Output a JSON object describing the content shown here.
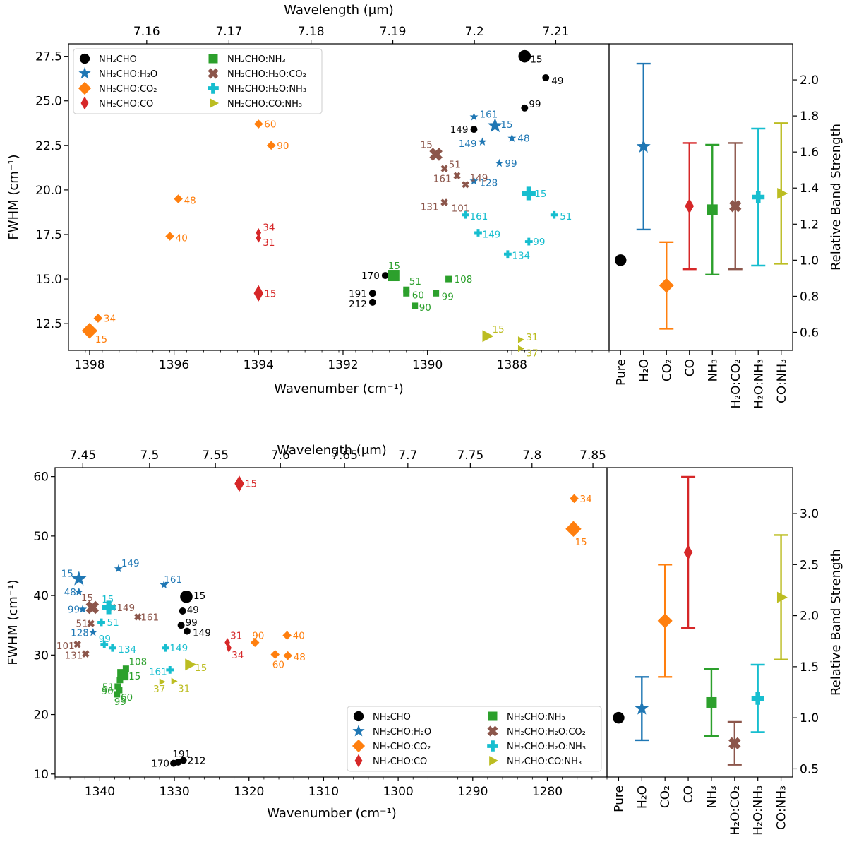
{
  "colors": {
    "pure": "#000000",
    "h2o": "#1f77b4",
    "co2": "#ff7f0e",
    "co": "#d62728",
    "nh3": "#2ca02c",
    "h2o_co2": "#8c564b",
    "h2o_nh3": "#17becf",
    "co_nh3": "#bcbd22"
  },
  "legend_entries": [
    {
      "key": "pure",
      "marker": "circle",
      "text": "NH₂CHO"
    },
    {
      "key": "h2o",
      "marker": "star",
      "text": "NH₂CHO:H₂O"
    },
    {
      "key": "co2",
      "marker": "diamond",
      "text": "NH₂CHO:CO₂"
    },
    {
      "key": "co",
      "marker": "thin_diamond",
      "text": "NH₂CHO:CO"
    },
    {
      "key": "nh3",
      "marker": "square",
      "text": "NH₂CHO:NH₃"
    },
    {
      "key": "h2o_co2",
      "marker": "x",
      "text": "NH₂CHO:H₂O:CO₂"
    },
    {
      "key": "h2o_nh3",
      "marker": "plus",
      "text": "NH₂CHO:H₂O:NH₃"
    },
    {
      "key": "co_nh3",
      "marker": "triangle",
      "text": "NH₂CHO:CO:NH₃"
    }
  ],
  "chart_data": [
    {
      "type": "scatter",
      "name": "top-scatter",
      "xlabel": "Wavenumber (cm⁻¹)",
      "ylabel": "FWHM (cm⁻¹)",
      "x2label": "Wavelength (μm)",
      "xlim": [
        1398.5,
        1385.7
      ],
      "ylim": [
        11.0,
        28.2
      ],
      "x_ticks": [
        1398,
        1396,
        1394,
        1392,
        1390,
        1388
      ],
      "y_ticks": [
        12.5,
        15.0,
        17.5,
        20.0,
        22.5,
        25.0,
        27.5
      ],
      "y_tick_labels": [
        "12.5",
        "15.0",
        "17.5",
        "20.0",
        "22.5",
        "25.0",
        "27.5"
      ],
      "x2_ticks": [
        7.16,
        7.17,
        7.18,
        7.19,
        7.2,
        7.21
      ],
      "x2_tick_labels": [
        "7.16",
        "7.17",
        "7.18",
        "7.19",
        "7.2",
        "7.21"
      ],
      "legend_position": "upper-left",
      "series": [
        {
          "key": "pure",
          "points": [
            {
              "x": 1387.7,
              "y": 27.5,
              "label": "15",
              "big": true
            },
            {
              "x": 1387.2,
              "y": 26.3,
              "label": "49"
            },
            {
              "x": 1387.7,
              "y": 24.6,
              "label": "99"
            },
            {
              "x": 1388.9,
              "y": 23.4,
              "label": "149"
            },
            {
              "x": 1391.0,
              "y": 15.2,
              "label": "170"
            },
            {
              "x": 1391.3,
              "y": 14.2,
              "label": "191"
            },
            {
              "x": 1391.3,
              "y": 13.7,
              "label": "212"
            }
          ]
        },
        {
          "key": "h2o",
          "points": [
            {
              "x": 1388.4,
              "y": 23.6,
              "label": "15",
              "big": true
            },
            {
              "x": 1388.9,
              "y": 24.1,
              "label": "161"
            },
            {
              "x": 1388.0,
              "y": 22.9,
              "label": "48"
            },
            {
              "x": 1388.7,
              "y": 22.7,
              "label": "149"
            },
            {
              "x": 1388.3,
              "y": 21.5,
              "label": "99"
            },
            {
              "x": 1388.9,
              "y": 20.5,
              "label": "128"
            }
          ]
        },
        {
          "key": "co2",
          "points": [
            {
              "x": 1398.0,
              "y": 12.1,
              "label": "15",
              "big": true
            },
            {
              "x": 1397.8,
              "y": 12.8,
              "label": "34"
            },
            {
              "x": 1396.1,
              "y": 17.4,
              "label": "40"
            },
            {
              "x": 1395.9,
              "y": 19.5,
              "label": "48"
            },
            {
              "x": 1394.0,
              "y": 23.7,
              "label": "60"
            },
            {
              "x": 1393.7,
              "y": 22.5,
              "label": "90"
            }
          ]
        },
        {
          "key": "co",
          "points": [
            {
              "x": 1394.0,
              "y": 14.2,
              "label": "15",
              "big": true
            },
            {
              "x": 1394.0,
              "y": 17.6,
              "label": "34"
            },
            {
              "x": 1394.0,
              "y": 17.3,
              "label": "31"
            }
          ]
        },
        {
          "key": "nh3",
          "points": [
            {
              "x": 1390.8,
              "y": 15.2,
              "label": "15",
              "big": true
            },
            {
              "x": 1390.5,
              "y": 14.4,
              "label": "51"
            },
            {
              "x": 1390.5,
              "y": 14.2,
              "label": "60"
            },
            {
              "x": 1389.8,
              "y": 14.2,
              "label": "99"
            },
            {
              "x": 1390.3,
              "y": 13.5,
              "label": "90"
            },
            {
              "x": 1389.5,
              "y": 15.0,
              "label": "108"
            }
          ]
        },
        {
          "key": "h2o_co2",
          "points": [
            {
              "x": 1389.8,
              "y": 22.0,
              "label": "15",
              "big": true
            },
            {
              "x": 1389.6,
              "y": 21.2,
              "label": "51"
            },
            {
              "x": 1389.3,
              "y": 20.8,
              "label": "161"
            },
            {
              "x": 1389.1,
              "y": 20.3,
              "label": "149"
            },
            {
              "x": 1389.6,
              "y": 19.3,
              "label": "101"
            },
            {
              "x": 1389.6,
              "y": 19.3,
              "label": "131"
            }
          ]
        },
        {
          "key": "h2o_nh3",
          "points": [
            {
              "x": 1387.6,
              "y": 19.8,
              "label": "15",
              "big": true
            },
            {
              "x": 1387.0,
              "y": 18.6,
              "label": "51"
            },
            {
              "x": 1389.1,
              "y": 18.6,
              "label": "161"
            },
            {
              "x": 1388.8,
              "y": 17.6,
              "label": "149"
            },
            {
              "x": 1387.6,
              "y": 17.1,
              "label": "99"
            },
            {
              "x": 1388.1,
              "y": 16.4,
              "label": "134"
            }
          ]
        },
        {
          "key": "co_nh3",
          "points": [
            {
              "x": 1388.6,
              "y": 11.8,
              "label": "15",
              "big": true
            },
            {
              "x": 1387.8,
              "y": 11.6,
              "label": "31"
            },
            {
              "x": 1387.8,
              "y": 11.1,
              "label": "37"
            }
          ]
        }
      ]
    },
    {
      "type": "errorbar",
      "name": "top-band-strength",
      "ylabel": "Relative Band Strength",
      "ylim": [
        0.5,
        2.2
      ],
      "y_ticks": [
        0.6,
        0.8,
        1.0,
        1.2,
        1.4,
        1.6,
        1.8,
        2.0
      ],
      "y_tick_labels": [
        "0.6",
        "0.8",
        "1.0",
        "1.2",
        "1.4",
        "1.6",
        "1.8",
        "2.0"
      ],
      "categories": [
        "Pure",
        "H₂O",
        "CO₂",
        "CO",
        "NH₃",
        "H₂O:CO₂",
        "H₂O:NH₃",
        "CO:NH₃"
      ],
      "keys": [
        "pure",
        "h2o",
        "co2",
        "co",
        "nh3",
        "h2o_co2",
        "h2o_nh3",
        "co_nh3"
      ],
      "values": [
        1.0,
        1.63,
        0.86,
        1.3,
        1.28,
        1.3,
        1.35,
        1.37
      ],
      "errors": [
        0,
        0.46,
        0.24,
        0.35,
        0.36,
        0.35,
        0.38,
        0.39
      ]
    },
    {
      "type": "scatter",
      "name": "bottom-scatter",
      "xlabel": "Wavenumber (cm⁻¹)",
      "ylabel": "FWHM (cm⁻¹)",
      "x2label": "Wavelength (μm)",
      "xlim": [
        1346,
        1272
      ],
      "ylim": [
        9.5,
        61.5
      ],
      "x_ticks": [
        1340,
        1330,
        1320,
        1310,
        1300,
        1290,
        1280
      ],
      "y_ticks": [
        10,
        20,
        30,
        40,
        50,
        60
      ],
      "y_tick_labels": [
        "10",
        "20",
        "30",
        "40",
        "50",
        "60"
      ],
      "x2_ticks": [
        7.45,
        7.5,
        7.55,
        7.6,
        7.65,
        7.7,
        7.75,
        7.8,
        7.85
      ],
      "x2_tick_labels": [
        "7.45",
        "7.5",
        "7.55",
        "7.6",
        "7.65",
        "7.7",
        "7.75",
        "7.8",
        "7.85"
      ],
      "legend_position": "lower-right",
      "series": [
        {
          "key": "pure",
          "points": [
            {
              "x": 1328.4,
              "y": 39.8,
              "label": "15",
              "big": true
            },
            {
              "x": 1328.9,
              "y": 37.4,
              "label": "49"
            },
            {
              "x": 1329.1,
              "y": 35.0,
              "label": "99"
            },
            {
              "x": 1328.3,
              "y": 34.0,
              "label": "149"
            },
            {
              "x": 1330.1,
              "y": 11.8,
              "label": "170"
            },
            {
              "x": 1329.5,
              "y": 12.0,
              "label": "191"
            },
            {
              "x": 1328.8,
              "y": 12.3,
              "label": "212"
            }
          ]
        },
        {
          "key": "h2o",
          "points": [
            {
              "x": 1342.8,
              "y": 42.8,
              "label": "15",
              "big": true
            },
            {
              "x": 1337.5,
              "y": 44.5,
              "label": "149"
            },
            {
              "x": 1331.4,
              "y": 41.8,
              "label": "161"
            },
            {
              "x": 1342.8,
              "y": 40.6,
              "label": "48"
            },
            {
              "x": 1342.3,
              "y": 37.7,
              "label": "99"
            },
            {
              "x": 1340.9,
              "y": 33.8,
              "label": "128"
            }
          ]
        },
        {
          "key": "co2",
          "points": [
            {
              "x": 1276.5,
              "y": 51.2,
              "label": "15",
              "big": true
            },
            {
              "x": 1276.4,
              "y": 56.3,
              "label": "34"
            },
            {
              "x": 1319.2,
              "y": 32.1,
              "label": "90"
            },
            {
              "x": 1316.5,
              "y": 30.1,
              "label": "60"
            },
            {
              "x": 1314.9,
              "y": 33.3,
              "label": "40"
            },
            {
              "x": 1314.8,
              "y": 29.9,
              "label": "48"
            }
          ]
        },
        {
          "key": "co",
          "points": [
            {
              "x": 1321.3,
              "y": 58.8,
              "label": "15",
              "big": true
            },
            {
              "x": 1322.9,
              "y": 32.1,
              "label": "31"
            },
            {
              "x": 1322.7,
              "y": 31.2,
              "label": "34"
            }
          ]
        },
        {
          "key": "nh3",
          "points": [
            {
              "x": 1336.9,
              "y": 26.7,
              "label": "15",
              "big": true
            },
            {
              "x": 1336.5,
              "y": 27.7,
              "label": "108"
            },
            {
              "x": 1337.3,
              "y": 25.8,
              "label": "51"
            },
            {
              "x": 1337.6,
              "y": 24.7,
              "label": "90"
            },
            {
              "x": 1337.4,
              "y": 24.1,
              "label": "60"
            },
            {
              "x": 1337.7,
              "y": 23.4,
              "label": "99"
            }
          ]
        },
        {
          "key": "h2o_co2",
          "points": [
            {
              "x": 1341.0,
              "y": 38.0,
              "label": "15",
              "big": true
            },
            {
              "x": 1338.3,
              "y": 38.0,
              "label": "149"
            },
            {
              "x": 1334.9,
              "y": 36.4,
              "label": "161"
            },
            {
              "x": 1341.2,
              "y": 35.3,
              "label": "51"
            },
            {
              "x": 1343.0,
              "y": 31.8,
              "label": "101"
            },
            {
              "x": 1341.9,
              "y": 30.2,
              "label": "131"
            }
          ]
        },
        {
          "key": "h2o_nh3",
          "points": [
            {
              "x": 1338.8,
              "y": 38.0,
              "label": "15",
              "big": true
            },
            {
              "x": 1339.8,
              "y": 35.5,
              "label": "51"
            },
            {
              "x": 1338.3,
              "y": 31.2,
              "label": "134"
            },
            {
              "x": 1339.4,
              "y": 31.8,
              "label": "99"
            },
            {
              "x": 1331.2,
              "y": 31.2,
              "label": "149"
            },
            {
              "x": 1330.6,
              "y": 27.5,
              "label": "161"
            }
          ]
        },
        {
          "key": "co_nh3",
          "points": [
            {
              "x": 1328.0,
              "y": 28.4,
              "label": "15",
              "big": true
            },
            {
              "x": 1330.1,
              "y": 25.6,
              "label": "31"
            },
            {
              "x": 1331.7,
              "y": 25.5,
              "label": "37"
            }
          ]
        }
      ]
    },
    {
      "type": "errorbar",
      "name": "bottom-band-strength",
      "ylabel": "Relative Band Strength",
      "ylim": [
        0.42,
        3.45
      ],
      "y_ticks": [
        0.5,
        1.0,
        1.5,
        2.0,
        2.5,
        3.0
      ],
      "y_tick_labels": [
        "0.5",
        "1.0",
        "1.5",
        "2.0",
        "2.5",
        "3.0"
      ],
      "categories": [
        "Pure",
        "H₂O",
        "CO₂",
        "CO",
        "NH₃",
        "H₂O:CO₂",
        "H₂O:NH₃",
        "CO:NH₃"
      ],
      "keys": [
        "pure",
        "h2o",
        "co2",
        "co",
        "nh3",
        "h2o_co2",
        "h2o_nh3",
        "co_nh3"
      ],
      "values": [
        1.0,
        1.09,
        1.95,
        2.62,
        1.15,
        0.75,
        1.19,
        2.18
      ],
      "errors": [
        0,
        0.31,
        0.55,
        0.74,
        0.33,
        0.21,
        0.33,
        0.61
      ]
    }
  ]
}
